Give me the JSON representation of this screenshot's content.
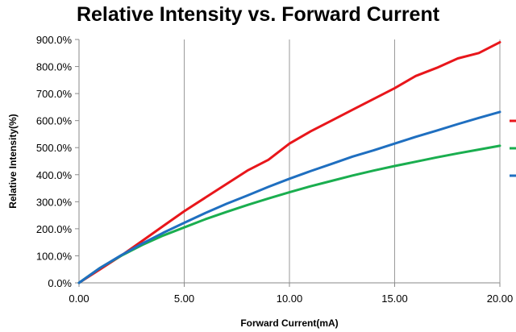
{
  "chart_data": {
    "type": "line",
    "title": "Relative Intensity vs. Forward Current",
    "xlabel": "Forward Current(mA)",
    "ylabel": "Relative Intensity(%)",
    "xlim": [
      0,
      20
    ],
    "ylim": [
      0,
      900
    ],
    "x_ticks": [
      "0.00",
      "5.00",
      "10.00",
      "15.00",
      "20.00"
    ],
    "y_ticks": [
      "0.0%",
      "100.0%",
      "200.0%",
      "300.0%",
      "400.0%",
      "500.0%",
      "600.0%",
      "700.0%",
      "800.0%",
      "900.0%"
    ],
    "grid": "vertical",
    "legend_position": "right",
    "series": [
      {
        "color": "#e8161b",
        "x": [
          0,
          1,
          2,
          3,
          4,
          5,
          6,
          7,
          8,
          9,
          10,
          11,
          12,
          13,
          14,
          15,
          16,
          17,
          18,
          19,
          20
        ],
        "y": [
          0,
          50,
          100,
          155,
          210,
          265,
          315,
          365,
          415,
          455,
          515,
          560,
          600,
          640,
          680,
          720,
          765,
          795,
          830,
          850,
          890
        ]
      },
      {
        "color": "#1aae4f",
        "x": [
          0,
          1,
          2,
          3,
          4,
          5,
          6,
          7,
          8,
          9,
          10,
          11,
          12,
          13,
          14,
          15,
          16,
          17,
          18,
          19,
          20
        ],
        "y": [
          0,
          55,
          100,
          140,
          175,
          205,
          235,
          262,
          288,
          312,
          335,
          357,
          377,
          397,
          415,
          432,
          448,
          464,
          479,
          493,
          507
        ]
      },
      {
        "color": "#1f6fc0",
        "x": [
          0,
          1,
          2,
          3,
          4,
          5,
          6,
          7,
          8,
          9,
          10,
          11,
          12,
          13,
          14,
          15,
          16,
          17,
          18,
          19,
          20
        ],
        "y": [
          0,
          55,
          102,
          145,
          185,
          222,
          258,
          292,
          323,
          355,
          385,
          413,
          440,
          467,
          490,
          515,
          540,
          563,
          587,
          610,
          632
        ]
      }
    ]
  }
}
